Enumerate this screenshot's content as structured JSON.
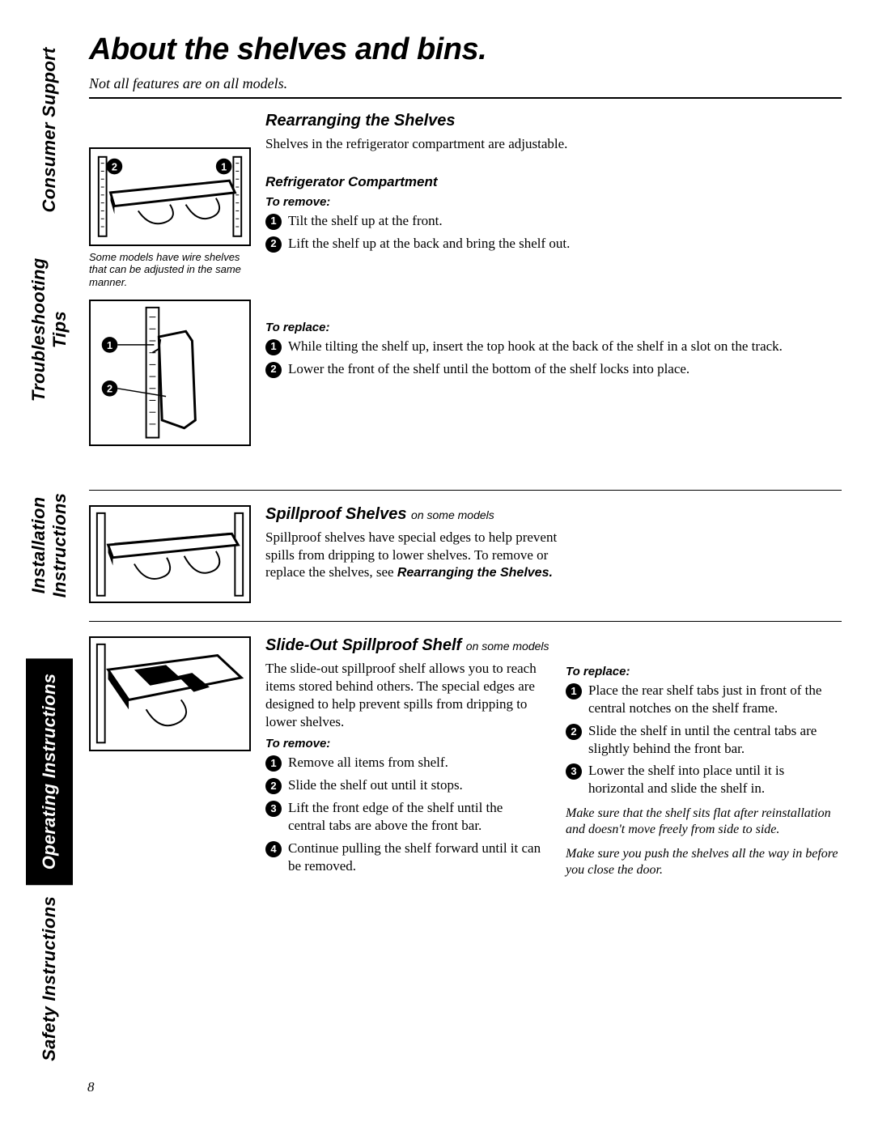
{
  "page_number": "8",
  "sidetabs": [
    {
      "label": "Safety Instructions",
      "style": "white",
      "flex": 1.05
    },
    {
      "label": "Operating Instructions",
      "style": "black",
      "flex": 1.3
    },
    {
      "label": "Installation Instructions",
      "style": "white",
      "flex": 1.3
    },
    {
      "label": "Troubleshooting Tips",
      "style": "white",
      "flex": 1.15
    },
    {
      "label": "Consumer Support",
      "style": "white",
      "flex": 1.1
    }
  ],
  "title": "About the shelves and bins.",
  "subtitle": "Not all features are on all models.",
  "sections": {
    "rearranging": {
      "heading": "Rearranging the Shelves",
      "intro": "Shelves in the refrigerator compartment are adjustable.",
      "subheading": "Refrigerator Compartment",
      "caption": "Some models have wire shelves that can be adjusted in the same manner.",
      "to_remove_h": "To remove:",
      "to_remove": [
        "Tilt the shelf up at the front.",
        "Lift the shelf up at the back and bring the shelf out."
      ],
      "to_replace_h": "To replace:",
      "to_replace": [
        "While tilting the shelf up, insert the top hook at the back of the shelf in a slot on the track.",
        "Lower the front of the shelf until the bottom of the shelf locks into place."
      ]
    },
    "spillproof": {
      "heading": "Spillproof Shelves",
      "heading_suffix": "on some models",
      "body_a": "Spillproof shelves have special edges to help prevent spills from dripping to lower shelves. To remove or replace the shelves, see ",
      "body_ref": "Rearranging the Shelves."
    },
    "slideout": {
      "heading": "Slide-Out Spillproof Shelf",
      "heading_suffix": "on some models",
      "intro": "The slide-out spillproof shelf allows you to reach items stored behind others. The special edges are designed to help prevent spills from dripping to lower shelves.",
      "to_remove_h": "To remove:",
      "to_remove": [
        "Remove all items from shelf.",
        "Slide the shelf out until it stops.",
        "Lift the front edge of the shelf until the central tabs are above the front bar.",
        "Continue pulling the shelf forward until it can be removed."
      ],
      "to_replace_h": "To replace:",
      "to_replace": [
        "Place the rear shelf tabs just in front of the central notches on the shelf frame.",
        "Slide the shelf in until the central tabs are slightly behind the front bar.",
        "Lower the shelf into place until it is horizontal and slide the shelf in."
      ],
      "note1": "Make sure that the shelf sits flat after reinstallation and doesn't move freely from side to side.",
      "note2": "Make sure you push the shelves all the way in before you close the door."
    }
  }
}
